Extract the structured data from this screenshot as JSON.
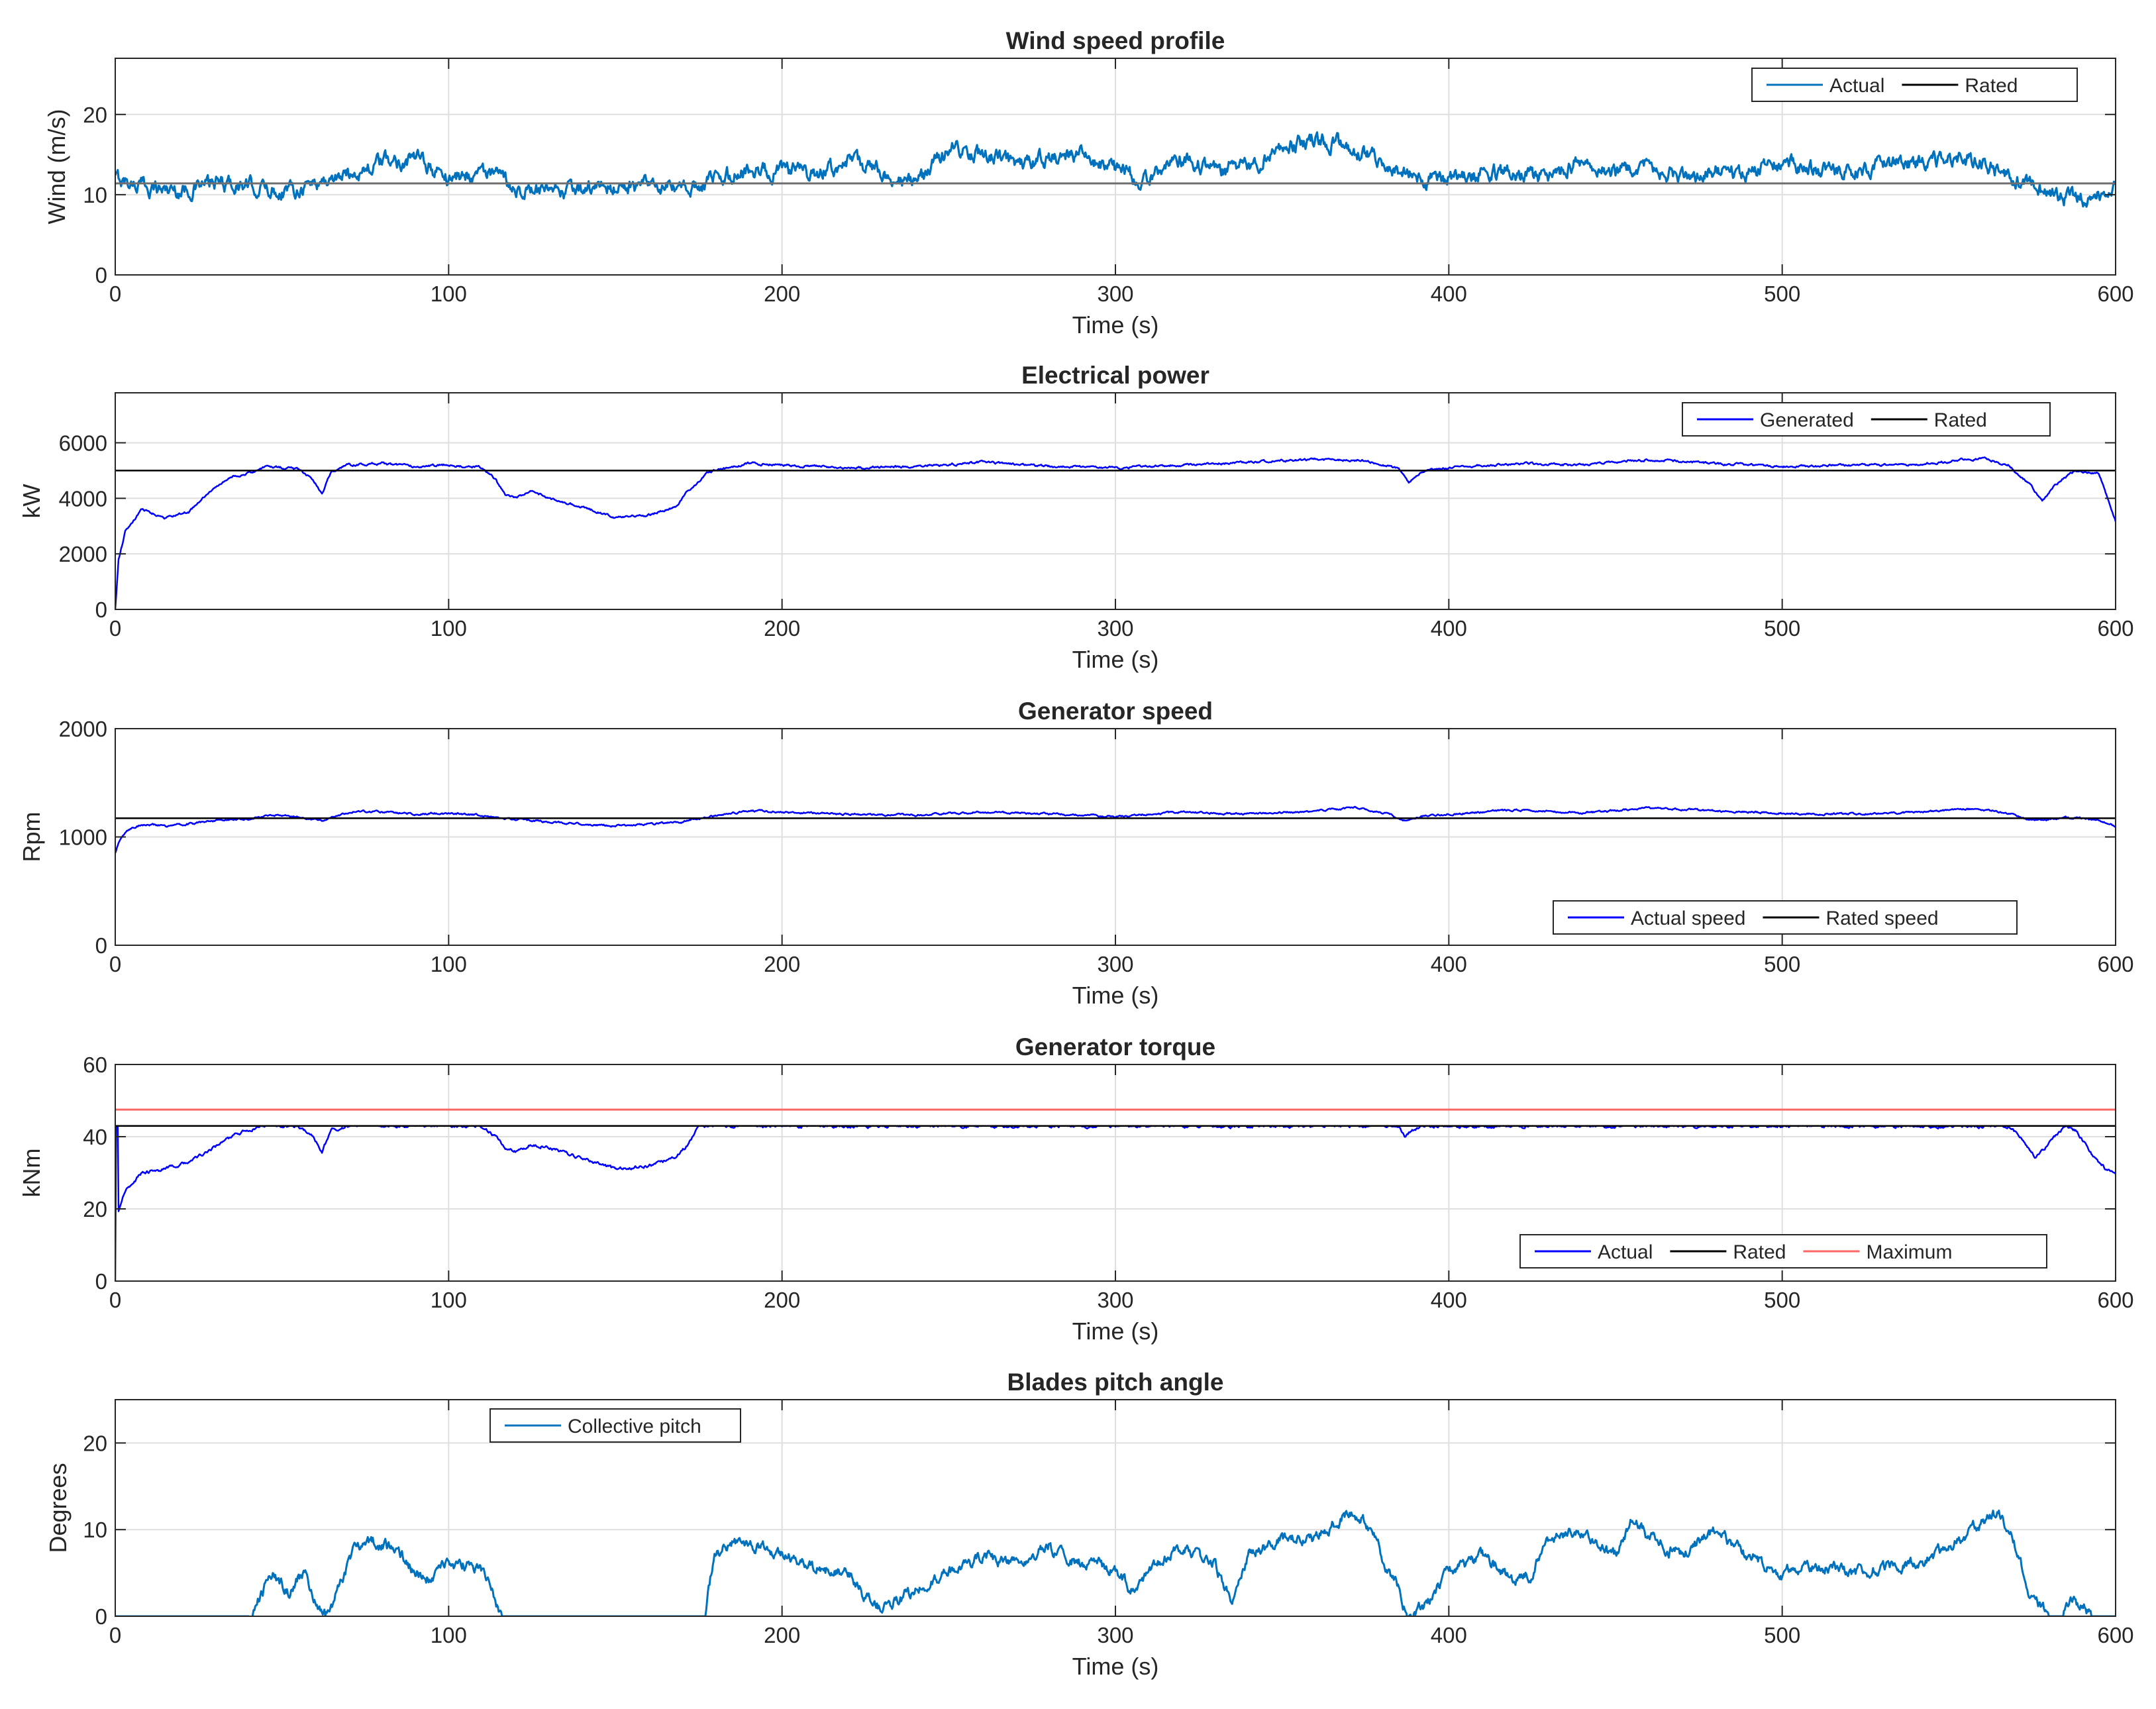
{
  "figure": {
    "colors": {
      "wind": "#0072BD",
      "blue": "#0000FF",
      "rated": "#000000",
      "max": "#FF6666",
      "grid": "#DFDFDF",
      "axes": "#262626"
    }
  },
  "chart_data": [
    {
      "type": "line",
      "title": "Wind speed profile",
      "xlabel": "Time (s)",
      "ylabel": "Wind (m/s)",
      "xlim": [
        0,
        600
      ],
      "ylim": [
        0,
        27
      ],
      "xticks": [
        0,
        100,
        200,
        300,
        400,
        500,
        600
      ],
      "yticks": [
        0,
        10,
        20
      ],
      "grid": true,
      "legend_position": "top-right",
      "series": [
        {
          "name": "Actual",
          "color": "#0072BD",
          "width": 3.2,
          "x": [
            0,
            10,
            20,
            30,
            40,
            50,
            60,
            70,
            80,
            90,
            100,
            110,
            120,
            130,
            140,
            150,
            160,
            170,
            180,
            190,
            200,
            210,
            220,
            230,
            240,
            250,
            260,
            270,
            280,
            290,
            300,
            310,
            320,
            330,
            340,
            350,
            360,
            370,
            380,
            390,
            400,
            410,
            420,
            430,
            440,
            450,
            460,
            470,
            480,
            490,
            500,
            510,
            520,
            530,
            540,
            550,
            560,
            570,
            580,
            590,
            600
          ],
          "y": [
            12,
            11,
            10.5,
            11.5,
            11,
            10.5,
            11.5,
            12.5,
            14,
            14.5,
            12,
            13,
            11,
            10,
            10.5,
            11,
            11,
            10.5,
            12,
            13,
            13,
            12.5,
            14,
            13,
            11,
            16,
            15,
            14,
            14.5,
            15,
            13,
            12,
            14.5,
            13,
            13.5,
            16,
            17,
            16,
            14,
            12,
            12,
            13,
            12.5,
            12,
            14.5,
            13,
            14,
            12,
            13,
            12.5,
            14,
            13,
            13,
            13.5,
            14,
            14.5,
            14,
            12,
            10,
            9.5,
            11
          ],
          "noise": 1.3
        },
        {
          "name": "Rated",
          "color": "#6F6F6F",
          "width": 3,
          "x": [
            0,
            600
          ],
          "y": [
            11.4,
            11.4
          ]
        }
      ]
    },
    {
      "type": "line",
      "title": "Electrical power",
      "xlabel": "Time (s)",
      "ylabel": "kW",
      "xlim": [
        0,
        600
      ],
      "ylim": [
        0,
        7800
      ],
      "xticks": [
        0,
        100,
        200,
        300,
        400,
        500,
        600
      ],
      "yticks": [
        0,
        2000,
        4000,
        6000
      ],
      "grid": true,
      "legend_position": "top-right",
      "series": [
        {
          "name": "Generated",
          "color": "#0000FF",
          "width": 2.5,
          "x": [
            0,
            1,
            3,
            8,
            15,
            22,
            28,
            35,
            40,
            45,
            55,
            59,
            62,
            65,
            70,
            80,
            90,
            100,
            110,
            114,
            117,
            120,
            125,
            130,
            140,
            150,
            160,
            168,
            172,
            178,
            190,
            200,
            220,
            240,
            260,
            280,
            300,
            320,
            340,
            360,
            375,
            385,
            388,
            392,
            400,
            420,
            440,
            460,
            480,
            500,
            520,
            540,
            560,
            568,
            575,
            578,
            582,
            588,
            595,
            600
          ],
          "y": [
            0,
            1800,
            2800,
            3600,
            3300,
            3500,
            4200,
            4800,
            4900,
            5150,
            5050,
            4700,
            4200,
            5000,
            5200,
            5250,
            5150,
            5200,
            5100,
            4700,
            4100,
            4000,
            4300,
            4000,
            3700,
            3300,
            3400,
            3700,
            4300,
            4950,
            5250,
            5200,
            5100,
            5150,
            5300,
            5150,
            5100,
            5200,
            5300,
            5400,
            5350,
            5050,
            4600,
            5000,
            5100,
            5250,
            5200,
            5400,
            5250,
            5150,
            5200,
            5200,
            5450,
            5200,
            4400,
            3900,
            4500,
            5000,
            4900,
            3200
          ],
          "noise": 55
        },
        {
          "name": "Rated",
          "color": "#000000",
          "width": 2.5,
          "x": [
            0,
            600
          ],
          "y": [
            5000,
            5000
          ]
        }
      ]
    },
    {
      "type": "line",
      "title": "Generator speed",
      "xlabel": "Time (s)",
      "ylabel": "Rpm",
      "xlim": [
        0,
        600
      ],
      "ylim": [
        0,
        2000
      ],
      "xticks": [
        0,
        100,
        200,
        300,
        400,
        500,
        600
      ],
      "yticks": [
        0,
        1000,
        2000
      ],
      "grid": true,
      "legend_position": "bottom-right",
      "series": [
        {
          "name": "Actual speed",
          "color": "#0000FF",
          "width": 2.5,
          "x": [
            0,
            1,
            3,
            8,
            15,
            22,
            30,
            40,
            45,
            50,
            58,
            62,
            66,
            72,
            80,
            90,
            100,
            110,
            116,
            120,
            130,
            140,
            150,
            160,
            170,
            178,
            190,
            200,
            220,
            240,
            260,
            280,
            300,
            320,
            340,
            360,
            372,
            382,
            387,
            392,
            400,
            420,
            440,
            460,
            480,
            500,
            520,
            540,
            560,
            570,
            575,
            585,
            595,
            600
          ],
          "y": [
            850,
            950,
            1050,
            1120,
            1100,
            1120,
            1150,
            1170,
            1190,
            1200,
            1170,
            1150,
            1190,
            1240,
            1230,
            1210,
            1220,
            1200,
            1170,
            1160,
            1140,
            1120,
            1100,
            1120,
            1140,
            1190,
            1240,
            1230,
            1210,
            1200,
            1230,
            1210,
            1190,
            1230,
            1210,
            1240,
            1270,
            1210,
            1150,
            1190,
            1210,
            1250,
            1220,
            1270,
            1240,
            1220,
            1210,
            1230,
            1260,
            1200,
            1150,
            1180,
            1160,
            1100
          ],
          "noise": 12
        },
        {
          "name": "Rated speed",
          "color": "#000000",
          "width": 2.5,
          "x": [
            0,
            600
          ],
          "y": [
            1173,
            1173
          ]
        }
      ]
    },
    {
      "type": "line",
      "title": "Generator torque",
      "xlabel": "Time (s)",
      "ylabel": "kNm",
      "xlim": [
        0,
        600
      ],
      "ylim": [
        0,
        60
      ],
      "xticks": [
        0,
        100,
        200,
        300,
        400,
        500,
        600
      ],
      "yticks": [
        0,
        20,
        40,
        60
      ],
      "grid": true,
      "legend_position": "bottom-right",
      "series": [
        {
          "name": "Actual",
          "color": "#0000FF",
          "width": 2.5,
          "x": [
            0,
            0.3,
            0.8,
            1,
            3,
            8,
            15,
            22,
            28,
            35,
            40,
            45,
            55,
            59,
            62,
            65,
            70,
            80,
            90,
            100,
            110,
            114,
            117,
            120,
            125,
            130,
            140,
            150,
            160,
            168,
            172,
            175,
            190,
            250,
            300,
            350,
            380,
            385,
            387,
            389,
            393,
            400,
            450,
            500,
            550,
            568,
            573,
            576,
            580,
            585,
            588,
            593,
            597,
            600
          ],
          "y": [
            0,
            60,
            50,
            19,
            25,
            30,
            31,
            33,
            36,
            40,
            42,
            43,
            43,
            40,
            36,
            42,
            43,
            43,
            43,
            43,
            43,
            40,
            37,
            36,
            38,
            37,
            34,
            31,
            32,
            34,
            38,
            43,
            43,
            43,
            43,
            43,
            43,
            43,
            40,
            42,
            43,
            43,
            43,
            43,
            43,
            43,
            38,
            34,
            38,
            43,
            42,
            35,
            31,
            30
          ],
          "noise": 0.6
        },
        {
          "name": "Rated",
          "color": "#000000",
          "width": 2.5,
          "x": [
            0,
            600
          ],
          "y": [
            43,
            43
          ]
        },
        {
          "name": "Maximum",
          "color": "#FF6666",
          "width": 3,
          "x": [
            0,
            600
          ],
          "y": [
            47.5,
            47.5
          ]
        }
      ]
    },
    {
      "type": "line",
      "title": "Blades pitch angle",
      "xlabel": "Time (s)",
      "ylabel": "Degrees",
      "xlim": [
        0,
        600
      ],
      "ylim": [
        0,
        25
      ],
      "xticks": [
        0,
        100,
        200,
        300,
        400,
        500,
        600
      ],
      "yticks": [
        0,
        10,
        20
      ],
      "grid": true,
      "legend_position": "top-left",
      "series": [
        {
          "name": "Collective pitch",
          "color": "#0072BD",
          "width": 3,
          "x": [
            0,
            40,
            42,
            47,
            52,
            57,
            60,
            63,
            67,
            72,
            78,
            85,
            90,
            95,
            100,
            105,
            110,
            114,
            116,
            177,
            178,
            180,
            185,
            190,
            200,
            210,
            220,
            225,
            230,
            240,
            250,
            260,
            270,
            280,
            290,
            300,
            305,
            310,
            320,
            330,
            335,
            340,
            350,
            360,
            370,
            375,
            380,
            385,
            388,
            392,
            400,
            410,
            420,
            425,
            430,
            440,
            450,
            455,
            460,
            470,
            480,
            490,
            500,
            510,
            520,
            530,
            540,
            550,
            560,
            565,
            570,
            575,
            580,
            584,
            586,
            590,
            593,
            600
          ],
          "y": [
            0,
            0,
            1,
            5,
            3,
            5,
            2,
            0,
            3,
            8,
            8.5,
            7.5,
            5,
            4.5,
            6,
            6,
            5,
            2,
            0,
            0,
            4,
            7,
            8.5,
            8.5,
            7,
            5.5,
            5,
            2,
            1,
            3,
            5,
            7,
            6,
            8,
            6,
            5.5,
            3,
            5,
            8,
            6,
            1,
            7,
            9,
            9,
            12,
            11,
            7,
            3,
            0,
            1,
            5,
            7,
            4,
            5,
            9,
            10,
            7,
            11,
            9,
            7,
            10,
            7,
            5,
            6,
            5,
            5.5,
            6,
            8,
            11,
            12,
            8,
            2,
            0,
            0,
            1.5,
            1.5,
            0,
            0
          ],
          "noise": 0.9
        }
      ]
    }
  ]
}
